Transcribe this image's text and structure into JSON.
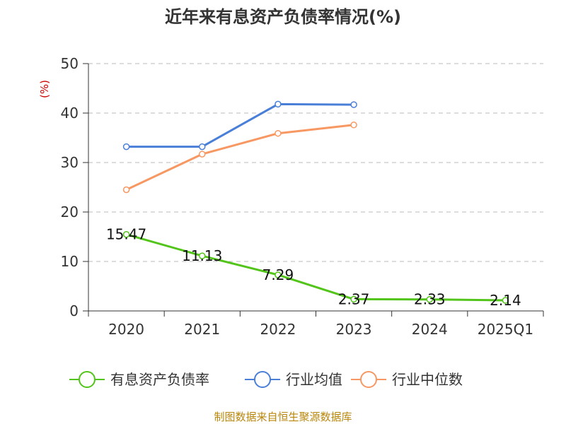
{
  "chart_data": {
    "type": "line",
    "title": "近年来有息资产负债率情况(%)",
    "ylabel": "(%)",
    "categories": [
      "2020",
      "2021",
      "2022",
      "2023",
      "2024",
      "2025Q1"
    ],
    "ylim": [
      0,
      50
    ],
    "yticks": [
      0,
      10,
      20,
      30,
      40,
      50
    ],
    "grid": true,
    "legend_position": "bottom",
    "series": [
      {
        "name": "有息资产负债率",
        "color": "#52c41a",
        "values": [
          15.47,
          11.13,
          7.29,
          2.37,
          2.33,
          2.14
        ],
        "labels": [
          "15.47",
          "11.13",
          "7.29",
          "2.37",
          "2.33",
          "2.14"
        ]
      },
      {
        "name": "行业均值",
        "color": "#4a7fd8",
        "values": [
          33.2,
          33.2,
          41.8,
          41.7,
          null,
          null
        ]
      },
      {
        "name": "行业中位数",
        "color": "#f79862",
        "values": [
          24.5,
          31.7,
          35.9,
          37.6,
          null,
          null
        ]
      }
    ],
    "source": "制图数据来自恒生聚源数据库"
  }
}
